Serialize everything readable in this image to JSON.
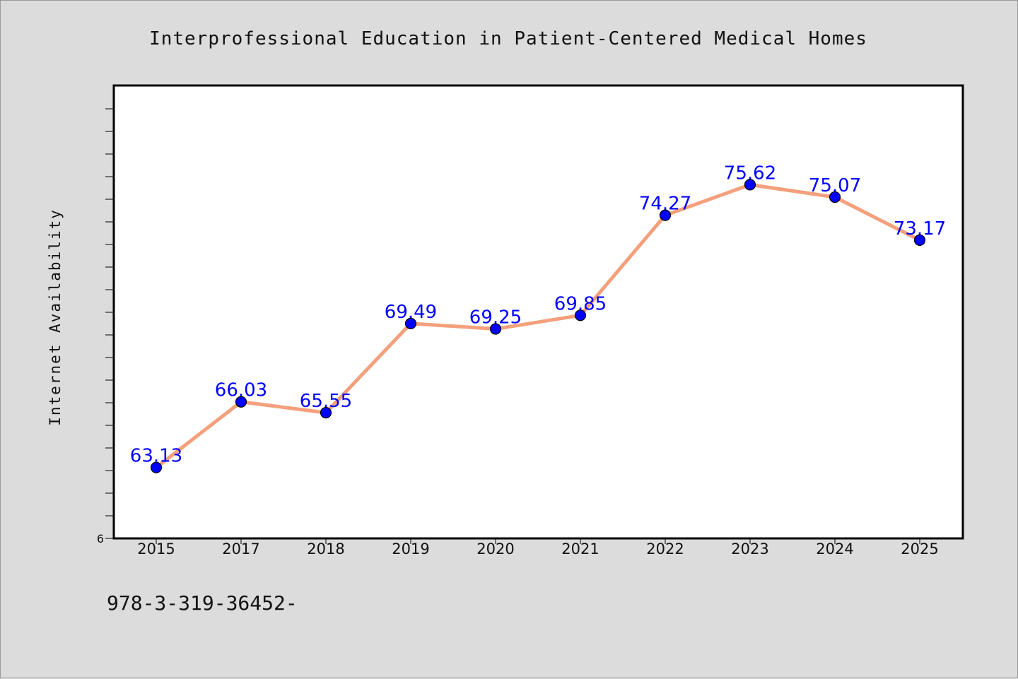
{
  "chart_data": {
    "type": "line",
    "title": "Interprofessional Education in Patient-Centered Medical Homes",
    "xlabel": "",
    "ylabel": "Internet Availability",
    "categories": [
      "2015",
      "2017",
      "2018",
      "2019",
      "2020",
      "2021",
      "2022",
      "2023",
      "2024",
      "2025"
    ],
    "series": [
      {
        "values": [
          63.13,
          66.03,
          65.55,
          69.49,
          69.25,
          69.85,
          74.27,
          75.62,
          75.07,
          73.17
        ],
        "labels": [
          "63.13",
          "66.03",
          "65.55",
          "69.49",
          "69.25",
          "69.85",
          "74.27",
          "75.62",
          "75.07",
          "73.17"
        ]
      }
    ],
    "y_tick_labels": [
      "6"
    ],
    "ylim": [
      60.0,
      80.0
    ],
    "grid": false,
    "line_color": "#f4a07c",
    "marker_color": "#0000ff",
    "label_color": "#0000ff"
  },
  "footer": {
    "text": "978-3-319-36452-"
  }
}
